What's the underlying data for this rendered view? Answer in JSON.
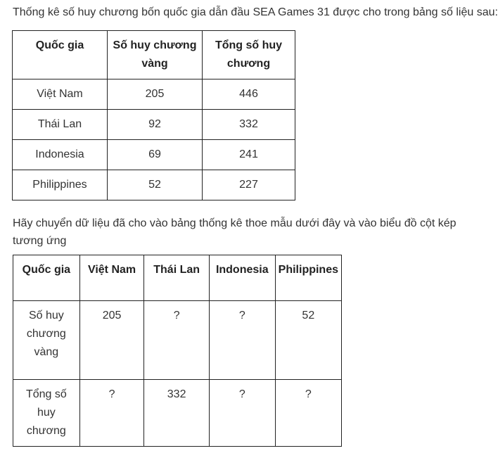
{
  "intro": "Thống kê số huy chương bốn quốc gia dẫn đầu SEA Games 31 được cho trong bảng số liệu sau:",
  "table1": {
    "headers": [
      "Quốc gia",
      "Số huy chương vàng",
      "Tổng số huy chương"
    ],
    "rows": [
      [
        "Việt Nam",
        "205",
        "446"
      ],
      [
        "Thái Lan",
        "92",
        "332"
      ],
      [
        "Indonesia",
        "69",
        "241"
      ],
      [
        "Philippines",
        "52",
        "227"
      ]
    ]
  },
  "instruction": "Hãy chuyển dữ liệu đã cho vào bảng thống kê thoe mẫu dưới đây và vào biểu đồ cột kép tương ứng",
  "table2": {
    "headers": [
      "Quốc gia",
      "Việt Nam",
      "Thái Lan",
      "Indonesia",
      "Philippines"
    ],
    "rows": [
      [
        "Số huy chương vàng",
        "205",
        "?",
        "?",
        "52"
      ],
      [
        "Tổng số huy chương",
        "?",
        "332",
        "?",
        "?"
      ]
    ]
  }
}
